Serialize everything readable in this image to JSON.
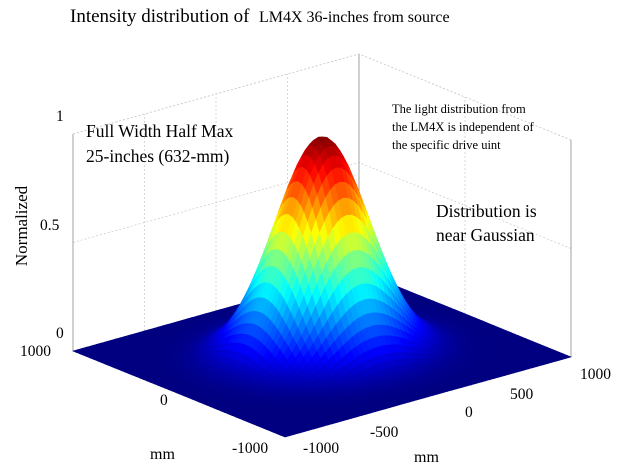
{
  "chart_data": {
    "type": "surface",
    "title_main": "Intensity distribution of",
    "title_sub": "LM4X 36-inches from source",
    "zlabel": "Normalized",
    "xlabel": "mm",
    "ylabel": "mm",
    "x_ticks": [
      "1000",
      "0",
      "-1000"
    ],
    "y_ticks": [
      "-1000",
      "-500",
      "0",
      "500",
      "1000"
    ],
    "z_ticks": [
      "0",
      "0.5",
      "1"
    ],
    "xlim": [
      -1000,
      1000
    ],
    "ylim": [
      -1000,
      1000
    ],
    "zlim": [
      0,
      1
    ],
    "grid": true,
    "colormap": "jet",
    "fwhm_mm": 632,
    "surface": "gaussian, peak 1 at (0,0)",
    "annotations": {
      "fwhm": [
        "Full Width Half Max",
        "25-inches (632-mm)"
      ],
      "note": [
        "The light distribution from",
        "the LM4X is independent of",
        "the specific drive uint"
      ],
      "gaussian": [
        "Distribution is",
        "near Gaussian"
      ]
    }
  }
}
